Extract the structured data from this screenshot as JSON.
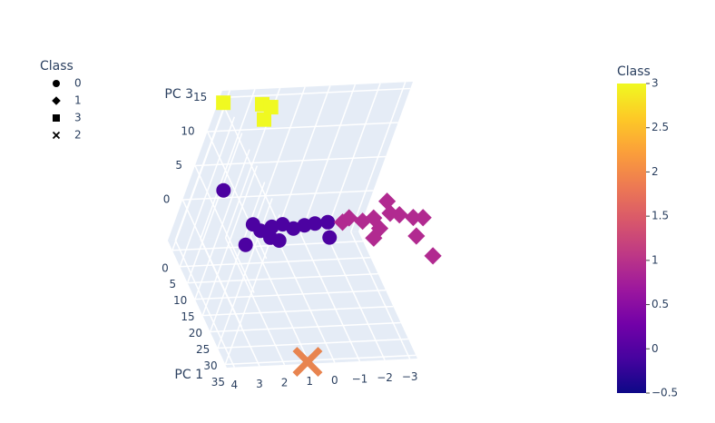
{
  "chart_data": {
    "type": "scatter3d",
    "xaxis_title": "PC 1",
    "zaxis_title": "PC 3",
    "xlim": [
      -3,
      36
    ],
    "ylim": [
      4.3,
      -3.3
    ],
    "zlim": [
      -6,
      16
    ],
    "xticks": [
      0,
      5,
      10,
      15,
      20,
      25,
      30,
      35
    ],
    "yticks": [
      4,
      3,
      2,
      1,
      0,
      {
        "value": -1,
        "label": "−1"
      },
      {
        "value": -2,
        "label": "−2"
      },
      {
        "value": -3,
        "label": "−3"
      }
    ],
    "zticks": [
      0,
      5,
      10,
      15
    ],
    "grid": true,
    "legend_title": "Class",
    "series": [
      {
        "name": "0",
        "symbol": "circle",
        "color": "#4c02a1",
        "x": [
          -1,
          -1,
          -1,
          -1,
          -1,
          -1,
          -1,
          -1,
          -1,
          -1,
          -1,
          -1,
          -1
        ],
        "y": [
          3.0,
          1.3,
          0.9,
          0.5,
          0.1,
          -0.4,
          -0.8,
          -1.2,
          -1.7,
          0.4,
          0.0,
          -2.0,
          1.3
        ],
        "z": [
          2.1,
          -3.2,
          -4.2,
          -3.7,
          -3.4,
          -4.1,
          -3.7,
          -3.5,
          -3.4,
          -5.3,
          -5.8,
          -5.7,
          -6.2
        ]
      },
      {
        "name": "1",
        "symbol": "diamond",
        "color": "#b12a90",
        "x": [
          -1,
          -1,
          -1,
          -1,
          -1,
          -1,
          -1,
          -1,
          -1,
          -1,
          -1,
          -1,
          6
        ],
        "y": [
          -2.3,
          -2.5,
          -3.1,
          -3.5,
          -3.8,
          -4.1,
          -3.9,
          -3.8,
          -4.5,
          -5.1,
          -5.5,
          -5.5,
          -5.7
        ],
        "z": [
          -3.5,
          -2.9,
          -3.5,
          -3.1,
          -0.7,
          -2.5,
          -4.7,
          -6.1,
          -2.8,
          -3.3,
          -3.4,
          -6.1,
          -5.7
        ]
      },
      {
        "name": "3",
        "symbol": "square",
        "color": "#f0f921",
        "x": [
          -1,
          -1,
          -1,
          -1
        ],
        "y": [
          4.3,
          2.7,
          2.3,
          2.4
        ],
        "z": [
          15.2,
          14.7,
          14.2,
          12.4
        ]
      },
      {
        "name": "2",
        "symbol": "x",
        "color": "#e8844f",
        "x": [
          35
        ],
        "y": [
          1.0
        ],
        "z": [
          -6.2
        ]
      }
    ],
    "colorbar": {
      "title": "Class",
      "lim": [
        -0.5,
        3
      ],
      "ticks": [
        {
          "value": -0.5,
          "label": "−0.5"
        },
        0,
        0.5,
        1,
        1.5,
        2,
        2.5,
        3
      ],
      "colorscale": [
        "#0d0887",
        "#46039f",
        "#7201a8",
        "#9c179e",
        "#bd3786",
        "#d8576b",
        "#ed7953",
        "#fb9f3a",
        "#fdca26",
        "#f0f921"
      ]
    }
  }
}
